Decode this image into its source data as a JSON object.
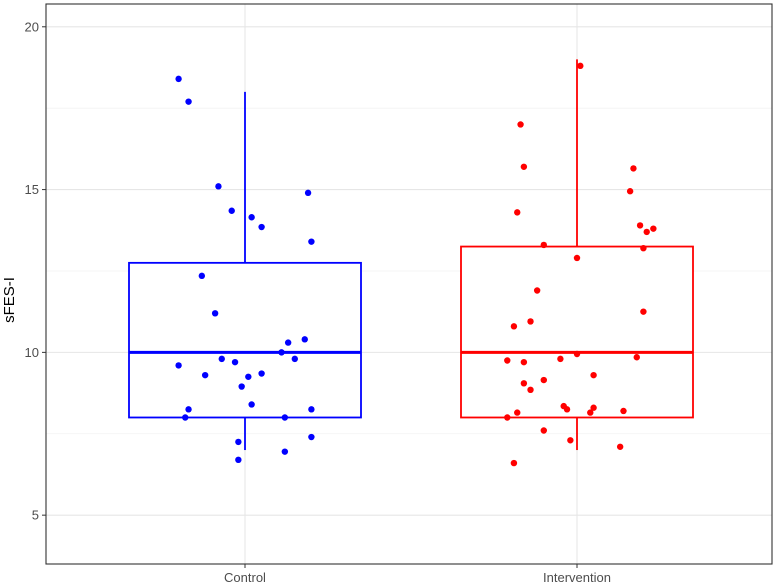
{
  "chart_data": {
    "type": "boxplot",
    "ylabel": "sFES-I",
    "xlabel": "",
    "ylim": [
      3.5,
      20.7
    ],
    "yticks": [
      5,
      10,
      15,
      20
    ],
    "grid": true,
    "categories": [
      "Control",
      "Intervention"
    ],
    "groups": [
      {
        "category": "Control",
        "color": "#0000ff",
        "box": {
          "min": 7.0,
          "q1": 8.0,
          "median": 10.0,
          "q3": 12.75,
          "max": 18.0
        },
        "points": [
          [
            -0.2,
            18.4
          ],
          [
            -0.17,
            17.7
          ],
          [
            -0.08,
            15.1
          ],
          [
            -0.04,
            14.35
          ],
          [
            0.02,
            14.15
          ],
          [
            0.05,
            13.85
          ],
          [
            0.19,
            14.9
          ],
          [
            0.2,
            13.4
          ],
          [
            -0.13,
            12.35
          ],
          [
            -0.09,
            11.2
          ],
          [
            0.13,
            10.3
          ],
          [
            0.18,
            10.4
          ],
          [
            -0.2,
            9.6
          ],
          [
            -0.07,
            9.8
          ],
          [
            -0.03,
            9.7
          ],
          [
            0.11,
            10.0
          ],
          [
            0.15,
            9.8
          ],
          [
            -0.12,
            9.3
          ],
          [
            0.01,
            9.25
          ],
          [
            0.05,
            9.35
          ],
          [
            -0.01,
            8.95
          ],
          [
            0.02,
            8.4
          ],
          [
            -0.17,
            8.25
          ],
          [
            -0.18,
            8.0
          ],
          [
            0.12,
            8.0
          ],
          [
            0.2,
            8.25
          ],
          [
            -0.02,
            7.25
          ],
          [
            0.2,
            7.4
          ],
          [
            0.12,
            6.95
          ],
          [
            -0.02,
            6.7
          ]
        ]
      },
      {
        "category": "Intervention",
        "color": "#ff0000",
        "box": {
          "min": 7.0,
          "q1": 8.0,
          "median": 10.0,
          "q3": 13.25,
          "max": 19.0
        },
        "points": [
          [
            0.01,
            18.8
          ],
          [
            -0.17,
            17.0
          ],
          [
            -0.16,
            15.7
          ],
          [
            0.17,
            15.65
          ],
          [
            0.16,
            14.95
          ],
          [
            -0.18,
            14.3
          ],
          [
            0.19,
            13.9
          ],
          [
            0.21,
            13.7
          ],
          [
            0.23,
            13.8
          ],
          [
            -0.1,
            13.3
          ],
          [
            0.2,
            13.2
          ],
          [
            0.0,
            12.9
          ],
          [
            -0.12,
            11.9
          ],
          [
            0.2,
            11.25
          ],
          [
            -0.14,
            10.95
          ],
          [
            -0.19,
            10.8
          ],
          [
            -0.21,
            9.75
          ],
          [
            -0.16,
            9.7
          ],
          [
            -0.05,
            9.8
          ],
          [
            0.0,
            9.95
          ],
          [
            0.18,
            9.85
          ],
          [
            -0.1,
            9.15
          ],
          [
            -0.16,
            9.05
          ],
          [
            -0.14,
            8.85
          ],
          [
            0.05,
            9.3
          ],
          [
            -0.04,
            8.35
          ],
          [
            -0.03,
            8.25
          ],
          [
            0.04,
            8.15
          ],
          [
            0.05,
            8.3
          ],
          [
            0.14,
            8.2
          ],
          [
            -0.21,
            8.0
          ],
          [
            -0.18,
            8.15
          ],
          [
            -0.1,
            7.6
          ],
          [
            -0.02,
            7.3
          ],
          [
            0.13,
            7.1
          ],
          [
            -0.19,
            6.6
          ]
        ]
      }
    ]
  }
}
